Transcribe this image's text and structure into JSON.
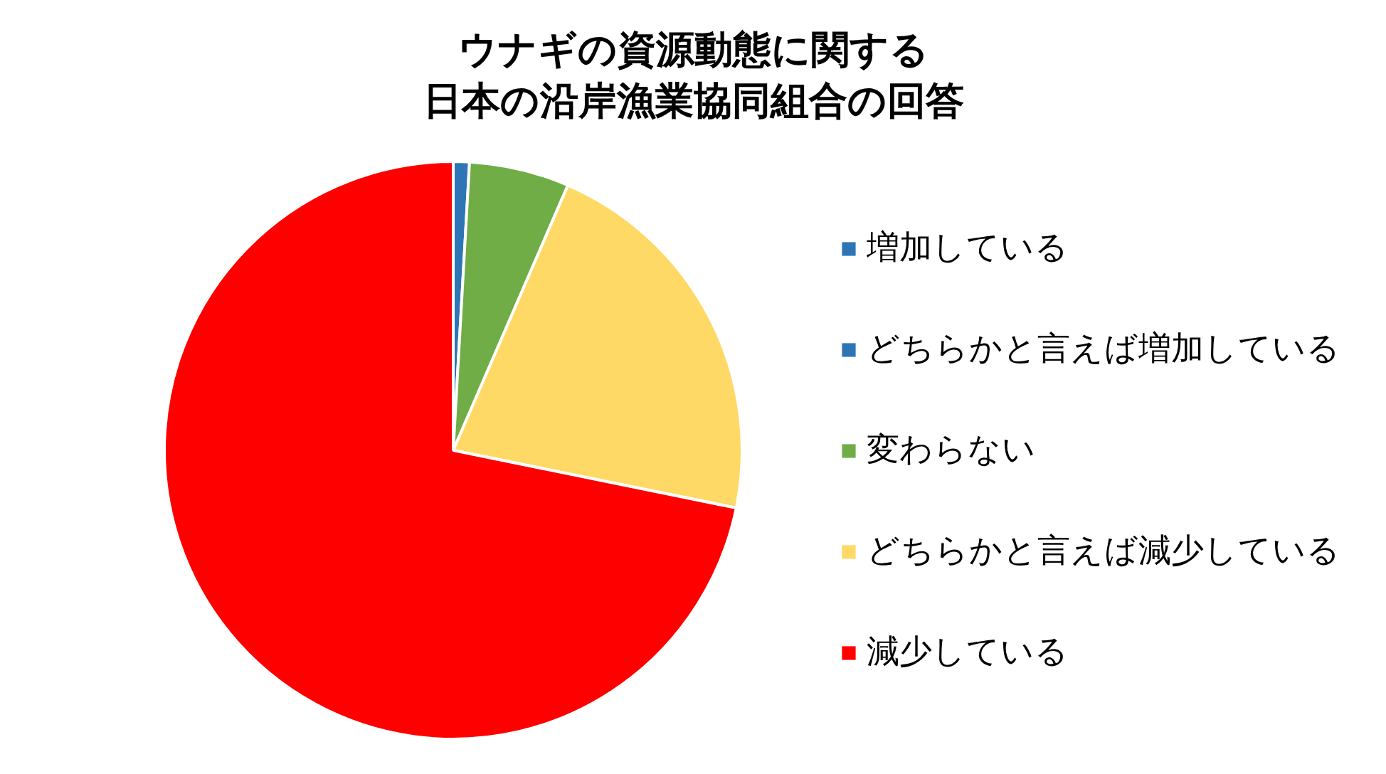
{
  "chart_data": {
    "type": "pie",
    "title": "ウナギの資源動態に関する",
    "subtitle": "日本の沿岸漁業協同組合の回答",
    "categories": [
      "増加している",
      "どちらかと言えば増加している",
      "変わらない",
      "どちらかと言えば減少している",
      "減少している"
    ],
    "values": [
      0,
      0.9,
      5.6,
      21.7,
      71.8
    ],
    "colors": [
      "#2e75b6",
      "#2e75b6",
      "#70ad47",
      "#ffd966",
      "#ff0000"
    ],
    "legend": "right"
  }
}
